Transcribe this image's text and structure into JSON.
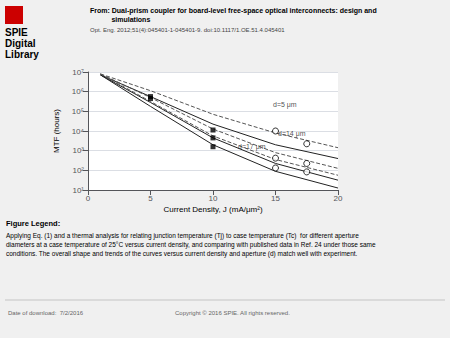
{
  "chart_data": {
    "type": "line",
    "title": "From: Dual-prism coupler for board-level free-space optical interconnects: design and\n           simulations",
    "subtitle": "Opt. Eng. 2012;51(4):045401-1-045401-9. doi:10.1117/1.OE.51.4.045401",
    "header": "SPIE\nDigital\nLibrary",
    "caption_title": "Figure Legend:",
    "caption": "Applying Eq. (1) and a thermal analysis for relating junction temperature (Tj) to case temperature (Tc)  for different aperture\ndiameters at a case temperature of 25°C versus current density, and comparing with published data in Ref. 24 under those same\nconditions. The overall shape and trends of the curves versus current density and aperture (d) match well with experiment.",
    "footer": [
      "Date of download:  7/2/2016",
      "Copyright © 2016 SPIE. All rights reserved."
    ],
    "xlabel": "Current Density, J (mA/μm²)",
    "ylabel": "MTF (hours)",
    "xlim": [
      0,
      20
    ],
    "xticks": [
      0,
      5,
      10,
      15,
      20
    ],
    "ylim": [
      10,
      10000000
    ],
    "yticks": [
      {
        "value": 10,
        "label": "10¹"
      },
      {
        "value": 100,
        "label": "10²"
      },
      {
        "value": 1000,
        "label": "10³"
      },
      {
        "value": 10000,
        "label": "10⁴"
      },
      {
        "value": 100000,
        "label": "10⁵"
      },
      {
        "value": 1000000,
        "label": "10⁶"
      },
      {
        "value": 10000000,
        "label": "10⁷"
      }
    ],
    "log": "y",
    "grid": "y",
    "series": [
      {
        "type": "line",
        "color": "#222222",
        "line_style": "solid",
        "x": [
          1,
          5,
          10,
          15,
          20
        ],
        "values": [
          7079457.844,
          562341.3252,
          22387.21139,
          1995.262315,
          398.1071706
        ]
      },
      {
        "type": "line",
        "color": "#555555",
        "line_style": "dashed",
        "x": [
          1,
          5,
          10,
          15,
          20
        ],
        "values": [
          7943282.347,
          1122018.454,
          70794.57844,
          7943.282347,
          1412.537545
        ]
      },
      {
        "type": "line",
        "color": "#222222",
        "line_style": "solid",
        "x": [
          1,
          5,
          10,
          15,
          20
        ],
        "values": [
          7079457.844,
          281838.2931,
          4466.835922,
          223.8721139,
          31.6227766
        ]
      },
      {
        "type": "line",
        "color": "#555555",
        "line_style": "dashed",
        "x": [
          1,
          5,
          10,
          15,
          20
        ],
        "values": [
          7943282.347,
          501187.2336,
          12589.25412,
          794.3282347,
          125.8925412
        ]
      },
      {
        "type": "line",
        "color": "#222222",
        "line_style": "solid",
        "x": [
          1,
          5,
          10,
          15,
          20
        ],
        "values": [
          7079457.844,
          177827.941,
          1995.262315,
          89.12509381,
          12.58925412
        ]
      },
      {
        "type": "line",
        "color": "#555555",
        "line_style": "dashed",
        "x": [
          1,
          5,
          10,
          15,
          20
        ],
        "values": [
          7943282.347,
          316227.766,
          5623.413252,
          354.8133892,
          56.23413252
        ]
      },
      {
        "type": "scatter",
        "marker": "square",
        "color": "#000000",
        "x": [
          5,
          5,
          10,
          10,
          10
        ],
        "values": [
          562341.3252,
          446683.5922,
          11220.18454,
          4466.835922,
          1584.893192
        ]
      },
      {
        "type": "scatter",
        "marker": "open_circle",
        "color": "#000000",
        "x": [
          15,
          15,
          15,
          17.5,
          17.5,
          17.5
        ],
        "values": [
          10000,
          416.8693835,
          131.8256739,
          2238.721139,
          223.8721139,
          83.17637711
        ]
      }
    ],
    "annotations": [
      {
        "text": "d=5 μm",
        "x": 14.8,
        "y": 141253.7545
      },
      {
        "text": "d=14 μm",
        "x": 15.2,
        "y": 5248.074602
      },
      {
        "text": "d=17 μm",
        "x": 12.0,
        "y": 1122.018454
      }
    ]
  }
}
